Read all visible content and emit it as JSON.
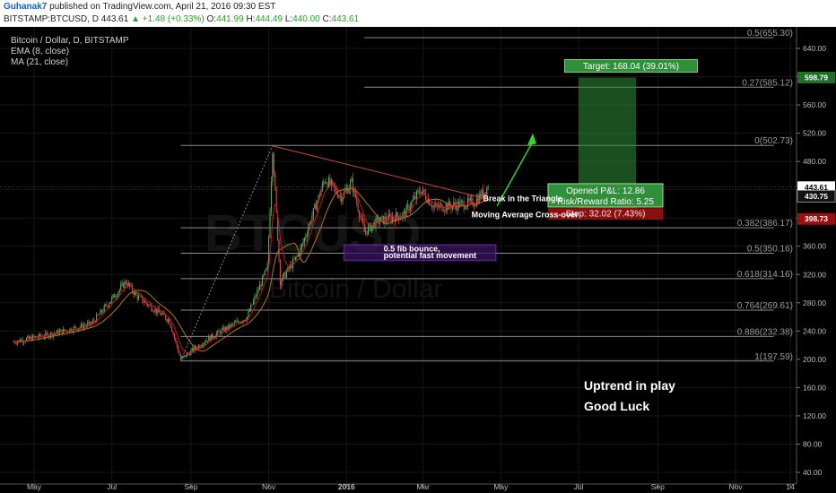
{
  "header": {
    "author": "Guhanak7",
    "published": "published on TradingView.com, April 21, 2016 09:30 EST",
    "symbol": "BITSTAMP:BTCUSD, D",
    "last": "443.61",
    "change_arrow": "▲",
    "change": "+1.48 (+0.33%)",
    "o_label": "O:",
    "o_value": "441.99",
    "h_label": "H:",
    "h_value": "444.49",
    "l_label": "L:",
    "l_value": "440.00",
    "c_label": "C:",
    "c_value": "443.61"
  },
  "legend": {
    "title": "Bitcoin / Dollar, D, BITSTAMP",
    "ema": "EMA (8, close)",
    "ma": "MA (21, close)"
  },
  "watermark": {
    "ticker": "BTCUSD",
    "name": "Bitcoin / Dollar"
  },
  "colors": {
    "background": "#000000",
    "up": "#5fa95f",
    "down": "#d24b4b",
    "ema": "#c41818",
    "ma": "#b4781e",
    "fib": "#8c8c8c",
    "target": "#2f8f3a",
    "stop": "#c02020",
    "rect": "#7a2aa8"
  },
  "chart_data": {
    "type": "candlestick",
    "title": "Bitcoin / Dollar, D, BITSTAMP",
    "xlabel": "",
    "ylabel": "",
    "x_ticks": [
      "May",
      "Jul",
      "Sep",
      "Nov",
      "2016",
      "Mar",
      "May",
      "Jul",
      "Sep",
      "Nov",
      "14"
    ],
    "y_ticks": [
      640,
      600,
      560,
      520,
      480,
      440,
      400,
      360,
      320,
      280,
      240,
      200,
      160,
      120,
      80,
      40
    ],
    "y_tick_labels": [
      "640.00",
      "600.00",
      "560.00",
      "520.00",
      "480.00",
      "440.00",
      "400.00",
      "360.00",
      "320.00",
      "280.00",
      "240.00",
      "200.00",
      "160.00",
      "120.00",
      "80.00",
      "40.00"
    ],
    "ylim": [
      35,
      670
    ],
    "key_points": [
      {
        "date": "2015-04-15",
        "close": 225
      },
      {
        "date": "2015-05-15",
        "close": 236
      },
      {
        "date": "2015-06-15",
        "close": 250
      },
      {
        "date": "2015-07-12",
        "close": 310
      },
      {
        "date": "2015-07-20",
        "close": 290
      },
      {
        "date": "2015-08-15",
        "close": 255
      },
      {
        "date": "2015-08-24",
        "close": 200
      },
      {
        "date": "2015-09-15",
        "close": 230
      },
      {
        "date": "2015-10-15",
        "close": 260
      },
      {
        "date": "2015-10-31",
        "close": 330
      },
      {
        "date": "2015-11-04",
        "close": 500
      },
      {
        "date": "2015-11-10",
        "close": 310
      },
      {
        "date": "2015-11-25",
        "close": 350
      },
      {
        "date": "2015-12-15",
        "close": 455
      },
      {
        "date": "2015-12-28",
        "close": 430
      },
      {
        "date": "2016-01-05",
        "close": 450
      },
      {
        "date": "2016-01-15",
        "close": 380
      },
      {
        "date": "2016-01-25",
        "close": 395
      },
      {
        "date": "2016-02-15",
        "close": 405
      },
      {
        "date": "2016-02-28",
        "close": 440
      },
      {
        "date": "2016-03-10",
        "close": 415
      },
      {
        "date": "2016-03-25",
        "close": 418
      },
      {
        "date": "2016-04-10",
        "close": 422
      },
      {
        "date": "2016-04-21",
        "close": 443.61
      }
    ],
    "fib_levels": [
      {
        "label": "0.5(655.30)",
        "value": 655.3
      },
      {
        "label": "0.27(585.12)",
        "value": 585.12
      },
      {
        "label": "0(502.73)",
        "value": 502.73
      },
      {
        "label": "0.382(386.17)",
        "value": 386.17
      },
      {
        "label": "0.5(350.16)",
        "value": 350.16
      },
      {
        "label": "0.618(314.16)",
        "value": 314.16
      },
      {
        "label": "0.764(269.61)",
        "value": 269.61
      },
      {
        "label": "0.886(232.38)",
        "value": 232.38
      },
      {
        "label": "1(197.59)",
        "value": 197.59
      }
    ],
    "price_tags": [
      {
        "label": "598.79",
        "value": 598.79,
        "kind": "target"
      },
      {
        "label": "443.61",
        "value": 443.61,
        "kind": "last"
      },
      {
        "label": "430.75",
        "value": 430.75,
        "kind": "entry"
      },
      {
        "label": "398.73",
        "value": 398.73,
        "kind": "stop"
      }
    ],
    "position": {
      "target_text": "Target: 168.04 (39.01%)",
      "pnl_text": "Opened P&L: 12.86",
      "rr_text": "Risk/Reward Ratio: 5.25",
      "stop_text": "Stop: 32.02 (7.43%)",
      "entry": 430.75,
      "target": 598.79,
      "stop": 398.73
    },
    "annotations": [
      "Break in the Triangle",
      "Moving Average Cross-over",
      "0.5 fib bounce,",
      "potential fast movement",
      "Uptrend in play",
      "Good Luck"
    ]
  }
}
